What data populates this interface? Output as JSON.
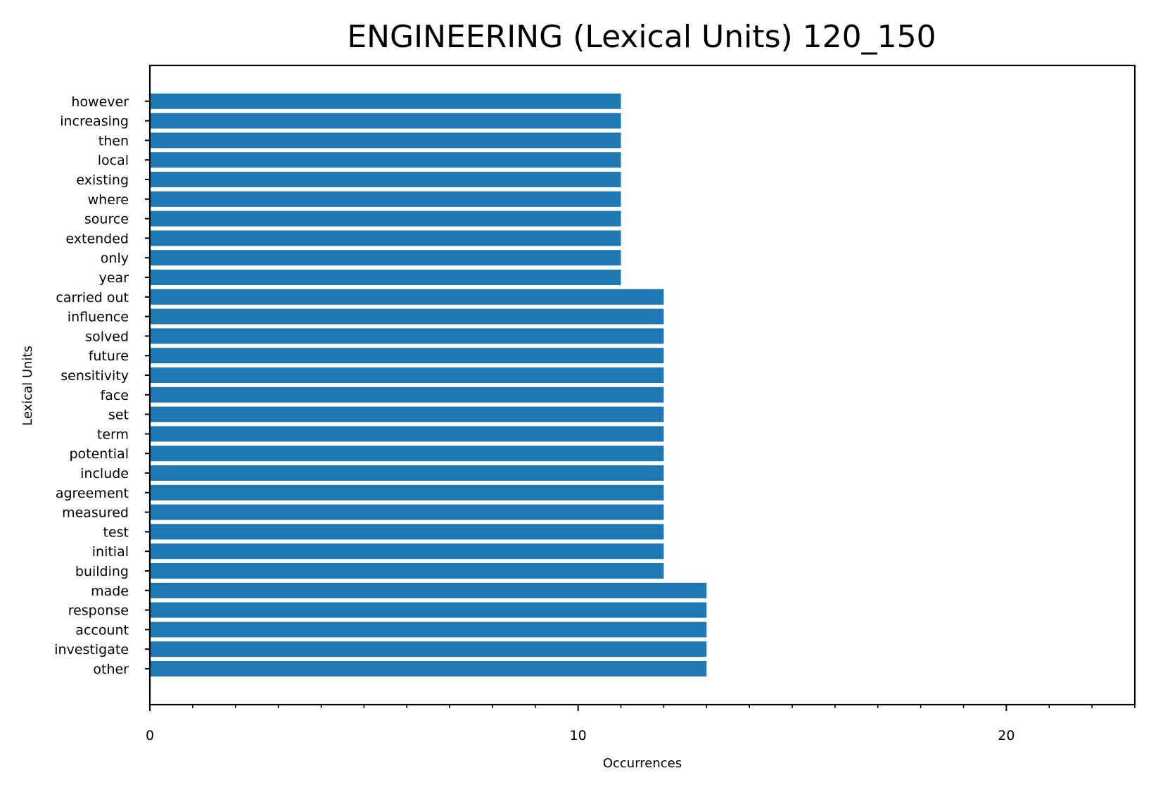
{
  "chart_data": {
    "type": "bar",
    "orientation": "horizontal",
    "title": "ENGINEERING (Lexical Units) 120_150",
    "xlabel": "Occurrences",
    "ylabel": "Lexical Units",
    "xlim": [
      0,
      23
    ],
    "x_ticks": [
      0,
      10,
      20
    ],
    "x_tick_labels": [
      "0",
      "10",
      "20"
    ],
    "x_minor_step": 1,
    "grid": false,
    "legend": "none",
    "bar_color": "#1f77b4",
    "categories": [
      "other",
      "investigate",
      "account",
      "response",
      "made",
      "building",
      "initial",
      "test",
      "measured",
      "agreement",
      "include",
      "potential",
      "term",
      "set",
      "face",
      "sensitivity",
      "future",
      "solved",
      "influence",
      "carried out",
      "year",
      "only",
      "extended",
      "source",
      "where",
      "existing",
      "local",
      "then",
      "increasing",
      "however"
    ],
    "values": [
      13,
      13,
      13,
      13,
      13,
      12,
      12,
      12,
      12,
      12,
      12,
      12,
      12,
      12,
      12,
      12,
      12,
      12,
      12,
      12,
      11,
      11,
      11,
      11,
      11,
      11,
      11,
      11,
      11,
      11
    ]
  }
}
